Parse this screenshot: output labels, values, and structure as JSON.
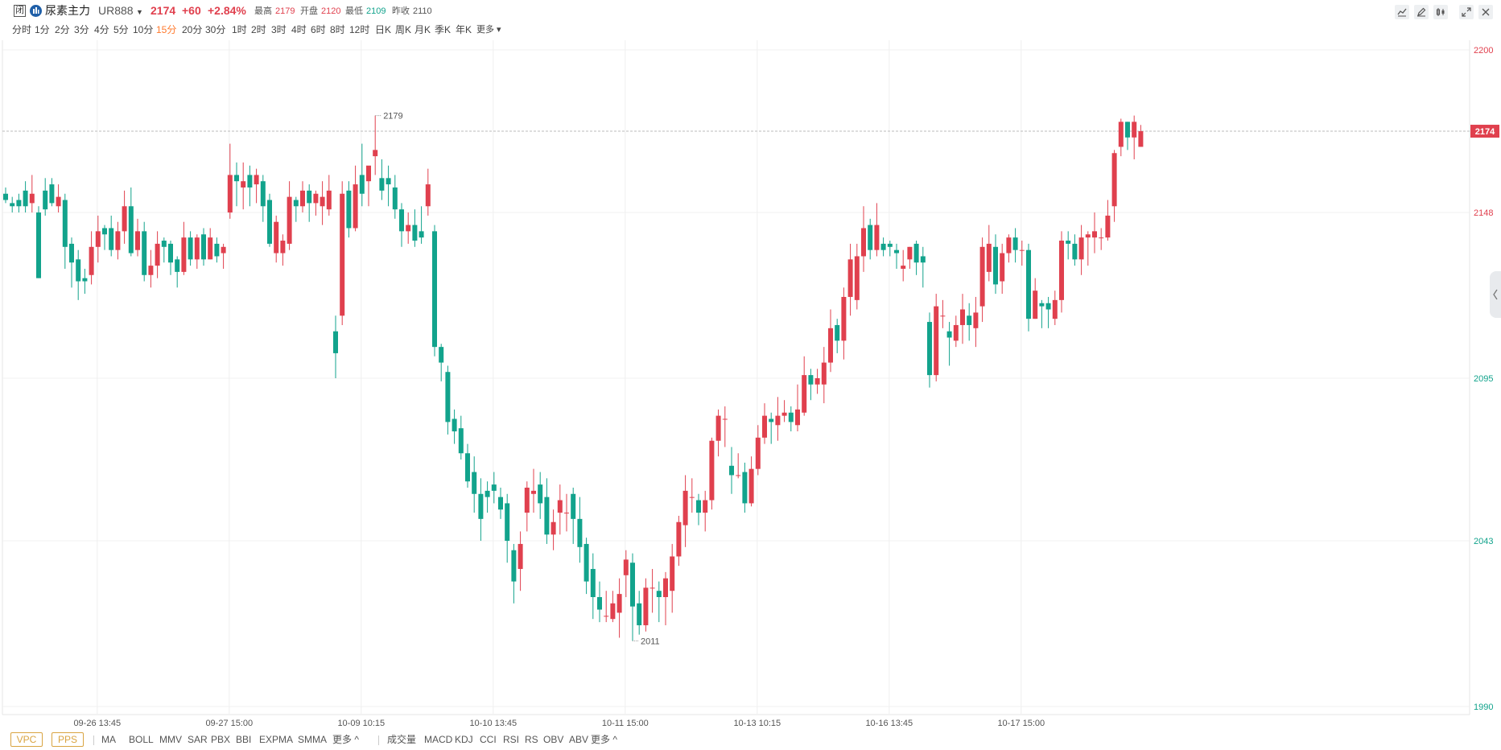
{
  "header": {
    "closed_badge": "闭",
    "symbol_name": "尿素主力",
    "symbol_code": "UR888",
    "last_price": "2174",
    "change": "+60",
    "change_pct": "+2.84%",
    "stats": [
      {
        "label": "最高",
        "value": "2179",
        "tone": "up"
      },
      {
        "label": "开盘",
        "value": "2120",
        "tone": "up"
      },
      {
        "label": "最低",
        "value": "2109",
        "tone": "down"
      },
      {
        "label": "昨收",
        "value": "2110",
        "tone": "neutral"
      }
    ],
    "toolbar_icons": [
      "line-chart-icon",
      "pen-icon",
      "compare-icon",
      "expand-icon",
      "close-icon"
    ]
  },
  "periods": [
    "分时",
    "1分",
    "2分",
    "3分",
    "4分",
    "5分",
    "10分",
    "15分",
    "20分",
    "30分",
    "1时",
    "2时",
    "3时",
    "4时",
    "6时",
    "8时",
    "12时",
    "日K",
    "周K",
    "月K",
    "季K",
    "年K",
    "更多"
  ],
  "active_period": "15分",
  "chart_data": {
    "type": "candlestick",
    "symbol": "UR888",
    "interval": "15分",
    "ylim": [
      1990,
      2200
    ],
    "y_ticks": [
      2200,
      2148,
      2095,
      2043,
      1990
    ],
    "x_tick_labels": [
      {
        "label": "09-26 13:45",
        "bar": 14
      },
      {
        "label": "09-27 15:00",
        "bar": 34
      },
      {
        "label": "10-09 10:15",
        "bar": 54
      },
      {
        "label": "10-10 13:45",
        "bar": 74
      },
      {
        "label": "10-11 15:00",
        "bar": 94
      },
      {
        "label": "10-13 10:15",
        "bar": 114
      },
      {
        "label": "10-16 13:45",
        "bar": 134
      },
      {
        "label": "10-17 15:00",
        "bar": 154
      }
    ],
    "last_price": 2174,
    "last_price_label": "2174",
    "max_marker": {
      "value": 2179,
      "label": "2179",
      "bar": 56
    },
    "min_marker": {
      "value": 2011,
      "label": "2011",
      "bar": 95
    },
    "bars": [
      [
        2154,
        2152,
        2156,
        2151
      ],
      [
        2151,
        2150,
        2153,
        2148
      ],
      [
        2152,
        2150,
        2154,
        2148
      ],
      [
        2155,
        2150,
        2158,
        2148
      ],
      [
        2151,
        2154,
        2160,
        2148
      ],
      [
        2148,
        2127,
        2150,
        2127
      ],
      [
        2155,
        2149,
        2159,
        2147
      ],
      [
        2157,
        2151,
        2159,
        2150
      ],
      [
        2150,
        2153,
        2157,
        2148
      ],
      [
        2152,
        2137,
        2154,
        2130
      ],
      [
        2138,
        2132,
        2140,
        2124
      ],
      [
        2133,
        2126,
        2136,
        2120
      ],
      [
        2127,
        2126,
        2130,
        2122
      ],
      [
        2128,
        2137,
        2142,
        2125
      ],
      [
        2137,
        2142,
        2147,
        2132
      ],
      [
        2143,
        2141,
        2144,
        2136
      ],
      [
        2143,
        2136,
        2147,
        2134
      ],
      [
        2136,
        2142,
        2145,
        2133
      ],
      [
        2142,
        2150,
        2155,
        2138
      ],
      [
        2150,
        2135,
        2156,
        2134
      ],
      [
        2136,
        2142,
        2146,
        2134
      ],
      [
        2142,
        2128,
        2145,
        2126
      ],
      [
        2128,
        2131,
        2136,
        2124
      ],
      [
        2131,
        2138,
        2142,
        2127
      ],
      [
        2139,
        2137,
        2140,
        2132
      ],
      [
        2138,
        2132,
        2139,
        2128
      ],
      [
        2133,
        2129,
        2134,
        2124
      ],
      [
        2129,
        2140,
        2145,
        2128
      ],
      [
        2140,
        2133,
        2142,
        2131
      ],
      [
        2133,
        2140,
        2141,
        2130
      ],
      [
        2141,
        2133,
        2143,
        2131
      ],
      [
        2133,
        2140,
        2143,
        2133
      ],
      [
        2138,
        2134,
        2140,
        2132
      ],
      [
        2135,
        2137,
        2138,
        2130
      ],
      [
        2148,
        2160,
        2170,
        2146
      ],
      [
        2160,
        2158,
        2164,
        2150
      ],
      [
        2156,
        2158,
        2164,
        2149
      ],
      [
        2160,
        2156,
        2163,
        2150
      ],
      [
        2157,
        2160,
        2162,
        2151
      ],
      [
        2158,
        2150,
        2160,
        2145
      ],
      [
        2152,
        2138,
        2154,
        2137
      ],
      [
        2135,
        2145,
        2147,
        2132
      ],
      [
        2135,
        2139,
        2141,
        2131
      ],
      [
        2138,
        2153,
        2158,
        2136
      ],
      [
        2152,
        2150,
        2153,
        2145
      ],
      [
        2150,
        2155,
        2158,
        2148
      ],
      [
        2155,
        2151,
        2157,
        2145
      ],
      [
        2151,
        2154,
        2155,
        2147
      ],
      [
        2150,
        2153,
        2158,
        2144
      ],
      [
        2149,
        2155,
        2160,
        2147
      ],
      [
        2110,
        2103,
        2115,
        2095
      ],
      [
        2115,
        2154,
        2158,
        2112
      ],
      [
        2155,
        2143,
        2158,
        2140
      ],
      [
        2143,
        2157,
        2163,
        2142
      ],
      [
        2160,
        2154,
        2170,
        2150
      ],
      [
        2158,
        2163,
        2162,
        2150
      ],
      [
        2166,
        2168,
        2179,
        2160
      ],
      [
        2159,
        2155,
        2165,
        2152
      ],
      [
        2159,
        2157,
        2163,
        2150
      ],
      [
        2156,
        2149,
        2160,
        2146
      ],
      [
        2149,
        2142,
        2151,
        2137
      ],
      [
        2142,
        2144,
        2148,
        2138
      ],
      [
        2144,
        2139,
        2149,
        2137
      ],
      [
        2142,
        2140,
        2150,
        2138
      ],
      [
        2150,
        2157,
        2162,
        2147
      ],
      [
        2142,
        2105,
        2144,
        2102
      ],
      [
        2105,
        2100,
        2106,
        2094
      ],
      [
        2097,
        2081,
        2099,
        2077
      ],
      [
        2082,
        2078,
        2085,
        2074
      ],
      [
        2079,
        2071,
        2083,
        2069
      ],
      [
        2071,
        2062,
        2074,
        2060
      ],
      [
        2065,
        2058,
        2070,
        2052
      ],
      [
        2058,
        2050,
        2063,
        2043
      ],
      [
        2059,
        2057,
        2062,
        2052
      ],
      [
        2061,
        2059,
        2065,
        2055
      ],
      [
        2057,
        2053,
        2060,
        2050
      ],
      [
        2055,
        2043,
        2058,
        2036
      ],
      [
        2040,
        2030,
        2042,
        2023
      ],
      [
        2034,
        2042,
        2046,
        2027
      ],
      [
        2052,
        2060,
        2062,
        2046
      ],
      [
        2058,
        2059,
        2066,
        2052
      ],
      [
        2061,
        2055,
        2065,
        2050
      ],
      [
        2057,
        2045,
        2063,
        2042
      ],
      [
        2045,
        2049,
        2053,
        2040
      ],
      [
        2052,
        2056,
        2061,
        2045
      ],
      [
        2052,
        2052,
        2058,
        2046
      ],
      [
        2058,
        2050,
        2060,
        2042
      ],
      [
        2050,
        2041,
        2057,
        2036
      ],
      [
        2042,
        2030,
        2044,
        2026
      ],
      [
        2034,
        2025,
        2039,
        2018
      ],
      [
        2025,
        2021,
        2030,
        2017
      ],
      [
        2019,
        2019,
        2027,
        2017
      ],
      [
        2018,
        2023,
        2027,
        2017
      ],
      [
        2020,
        2026,
        2031,
        2012
      ],
      [
        2032,
        2037,
        2040,
        2025
      ],
      [
        2036,
        2022,
        2039,
        2011
      ],
      [
        2023,
        2016,
        2027,
        2013
      ],
      [
        2016,
        2028,
        2031,
        2014
      ],
      [
        2028,
        2028,
        2034,
        2020
      ],
      [
        2027,
        2025,
        2030,
        2017
      ],
      [
        2025,
        2031,
        2033,
        2016
      ],
      [
        2027,
        2038,
        2042,
        2020
      ],
      [
        2038,
        2049,
        2051,
        2035
      ],
      [
        2048,
        2059,
        2064,
        2041
      ],
      [
        2057,
        2057,
        2063,
        2052
      ],
      [
        2056,
        2052,
        2058,
        2048
      ],
      [
        2052,
        2056,
        2059,
        2046
      ],
      [
        2056,
        2075,
        2076,
        2053
      ],
      [
        2075,
        2083,
        2085,
        2070
      ],
      [
        2082,
        2082,
        2086,
        2073
      ],
      [
        2067,
        2064,
        2073,
        2058
      ],
      [
        2064,
        2064,
        2071,
        2063
      ],
      [
        2065,
        2055,
        2068,
        2052
      ],
      [
        2055,
        2066,
        2070,
        2054
      ],
      [
        2066,
        2076,
        2080,
        2064
      ],
      [
        2076,
        2083,
        2087,
        2074
      ],
      [
        2082,
        2081,
        2084,
        2074
      ],
      [
        2080,
        2083,
        2089,
        2075
      ],
      [
        2083,
        2084,
        2088,
        2081
      ],
      [
        2084,
        2081,
        2086,
        2078
      ],
      [
        2080,
        2085,
        2093,
        2078
      ],
      [
        2084,
        2096,
        2102,
        2083
      ],
      [
        2096,
        2093,
        2098,
        2088
      ],
      [
        2093,
        2095,
        2098,
        2090
      ],
      [
        2093,
        2100,
        2105,
        2087
      ],
      [
        2100,
        2111,
        2117,
        2097
      ],
      [
        2112,
        2107,
        2114,
        2103
      ],
      [
        2107,
        2121,
        2124,
        2101
      ],
      [
        2121,
        2133,
        2138,
        2115
      ],
      [
        2120,
        2134,
        2138,
        2117
      ],
      [
        2134,
        2143,
        2150,
        2129
      ],
      [
        2144,
        2136,
        2146,
        2133
      ],
      [
        2136,
        2144,
        2151,
        2134
      ],
      [
        2138,
        2136,
        2140,
        2134
      ],
      [
        2138,
        2137,
        2139,
        2134
      ],
      [
        2136,
        2135,
        2138,
        2130
      ],
      [
        2130,
        2131,
        2136,
        2126
      ],
      [
        2133,
        2137,
        2137,
        2130
      ],
      [
        2138,
        2132,
        2139,
        2128
      ],
      [
        2134,
        2132,
        2137,
        2124
      ],
      [
        2113,
        2096,
        2116,
        2092
      ],
      [
        2096,
        2118,
        2122,
        2094
      ],
      [
        2115,
        2115,
        2120,
        2111
      ],
      [
        2110,
        2108,
        2113,
        2099
      ],
      [
        2107,
        2112,
        2115,
        2105
      ],
      [
        2112,
        2117,
        2122,
        2106
      ],
      [
        2115,
        2112,
        2119,
        2107
      ],
      [
        2111,
        2116,
        2121,
        2105
      ],
      [
        2118,
        2137,
        2140,
        2113
      ],
      [
        2129,
        2138,
        2144,
        2126
      ],
      [
        2137,
        2125,
        2141,
        2122
      ],
      [
        2126,
        2135,
        2138,
        2122
      ],
      [
        2135,
        2140,
        2141,
        2132
      ],
      [
        2140,
        2136,
        2143,
        2132
      ],
      [
        2136,
        2136,
        2139,
        2131
      ],
      [
        2136,
        2114,
        2138,
        2110
      ],
      [
        2114,
        2123,
        2127,
        2114
      ],
      [
        2119,
        2118,
        2120,
        2111
      ],
      [
        2119,
        2117,
        2121,
        2111
      ],
      [
        2114,
        2120,
        2123,
        2112
      ],
      [
        2120,
        2139,
        2142,
        2116
      ],
      [
        2139,
        2138,
        2142,
        2133
      ],
      [
        2138,
        2133,
        2141,
        2131
      ],
      [
        2133,
        2140,
        2144,
        2128
      ],
      [
        2140,
        2141,
        2142,
        2131
      ],
      [
        2140,
        2142,
        2148,
        2135
      ],
      [
        2140,
        2140,
        2143,
        2136
      ],
      [
        2140,
        2147,
        2152,
        2139
      ],
      [
        2150,
        2167,
        2168,
        2145
      ],
      [
        2169,
        2177,
        2178,
        2166
      ],
      [
        2177,
        2172,
        2177,
        2168
      ],
      [
        2172,
        2177,
        2179,
        2165
      ],
      [
        2169,
        2174,
        2176,
        2169
      ]
    ]
  },
  "bottom": {
    "boxes": [
      "VPC",
      "PPS"
    ],
    "main_indicators": [
      "MA",
      "BOLL",
      "MMV",
      "SAR",
      "PBX",
      "BBI",
      "EXPMA",
      "SMMA",
      "更多 ^"
    ],
    "sub_indicators": [
      "成交量",
      "MACD",
      "KDJ",
      "CCI",
      "RSI",
      "RS",
      "OBV",
      "ABV",
      "更多 ^"
    ]
  },
  "colors": {
    "up": "#e0404e",
    "down": "#12a38c",
    "accent": "#ff7a2e",
    "indicator_box": "#d9a441"
  }
}
